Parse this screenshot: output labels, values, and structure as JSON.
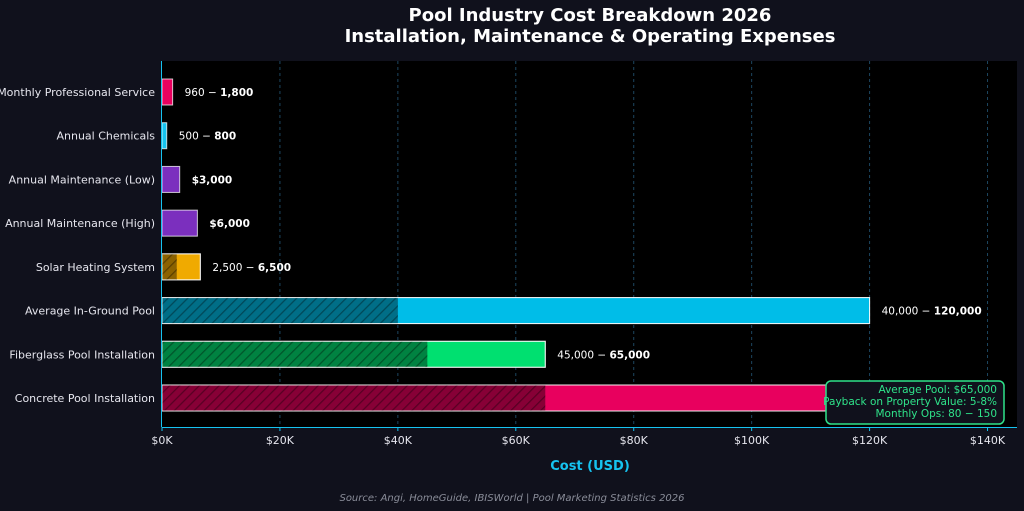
{
  "chart_data": {
    "type": "bar",
    "orientation": "horizontal",
    "title": "Pool Industry Cost Breakdown 2026",
    "subtitle": "Installation, Maintenance & Operating Expenses",
    "xlabel": "Cost (USD)",
    "xlim": [
      0,
      145000
    ],
    "x_ticks": [
      0,
      20000,
      40000,
      60000,
      80000,
      100000,
      120000,
      140000
    ],
    "x_tick_labels": [
      "$0K",
      "$20K",
      "$40K",
      "$60K",
      "$80K",
      "$100K",
      "$120K",
      "$140K"
    ],
    "grid": "vertical dashed",
    "categories": [
      "Monthly Professional Service",
      "Annual Chemicals",
      "Annual Maintenance (Low)",
      "Annual Maintenance (High)",
      "Solar Heating System",
      "Average In-Ground Pool",
      "Fiberglass Pool Installation",
      "Concrete Pool Installation"
    ],
    "bars": [
      {
        "category": "Monthly Professional Service",
        "min": null,
        "max": 1800,
        "label_left": "960 − ",
        "label_right": "1,800",
        "color": "#e8005e"
      },
      {
        "category": "Annual Chemicals",
        "min": null,
        "max": 800,
        "label_left": "500 − ",
        "label_right": "800",
        "color": "#16c3f0"
      },
      {
        "category": "Annual Maintenance (Low)",
        "min": null,
        "max": 3000,
        "label_left": "",
        "label_right": "$3,000",
        "color": "#7b2fbe"
      },
      {
        "category": "Annual Maintenance (High)",
        "min": null,
        "max": 6000,
        "label_left": "",
        "label_right": "$6,000",
        "color": "#7b2fbe"
      },
      {
        "category": "Solar Heating System",
        "min": 2500,
        "max": 6500,
        "label_left": "2,500 − ",
        "label_right": "6,500",
        "color": "#f0aa00"
      },
      {
        "category": "Average In-Ground Pool",
        "min": 40000,
        "max": 120000,
        "label_left": "40,000 − ",
        "label_right": "120,000",
        "color": "#00bde8"
      },
      {
        "category": "Fiberglass Pool Installation",
        "min": 45000,
        "max": 65000,
        "label_left": "45,000 − ",
        "label_right": "65,000",
        "color": "#00e070"
      },
      {
        "category": "Concrete Pool Installation",
        "min": 65000,
        "max": 120000,
        "label_left": "",
        "label_right": "",
        "color": "#e8005e"
      }
    ],
    "annotation": [
      "Average Pool: $65,000",
      "Payback on Property Value: 5-8%",
      "Monthly Ops: 80 − 150"
    ],
    "annotation_color": "#2fe38a",
    "source": "Source: Angi, HomeGuide, IBISWorld | Pool Marketing Statistics 2026"
  }
}
